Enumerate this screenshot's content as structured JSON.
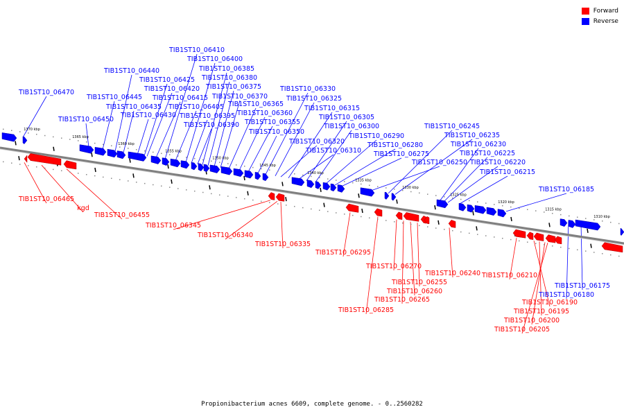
{
  "caption": "Propionibacterium acnes 6609, complete genome. - 0..2560282",
  "legend": [
    {
      "label": "Forward",
      "color": "#ff0000"
    },
    {
      "label": "Reverse",
      "color": "#0000ff"
    }
  ],
  "colors": {
    "forward": "#ff0000",
    "reverse": "#0000ff",
    "backbone": "#7f7f7f"
  },
  "scale_ticks": [
    "1370 kbp",
    "1365 kbp",
    "1360 kbp",
    "1355 kbp",
    "1350 kbp",
    "1345 kbp",
    "1340 kbp",
    "1335 kbp",
    "1330 kbp",
    "1325 kbp",
    "1320 kbp",
    "1315 kbp",
    "1310 kbp"
  ],
  "reverse_gene_labels": [
    "TIB1ST10_06470",
    "TIB1ST10_06450",
    "TIB1ST10_06445",
    "TIB1ST10_06440",
    "TIB1ST10_06435",
    "TIB1ST10_06430",
    "TIB1ST10_06425",
    "TIB1ST10_06420",
    "TIB1ST10_06415",
    "TIB1ST10_06410",
    "TIB1ST10_06405",
    "TIB1ST10_06400",
    "TIB1ST10_06395",
    "TIB1ST10_06390",
    "TIB1ST10_06385",
    "TIB1ST10_06380",
    "TIB1ST10_06375",
    "TIB1ST10_06370",
    "TIB1ST10_06365",
    "TIB1ST10_06360",
    "TIB1ST10_06355",
    "TIB1ST10_06350",
    "TIB1ST10_06330",
    "TIB1ST10_06325",
    "TIB1ST10_06320",
    "TIB1ST10_06315",
    "TIB1ST10_06310",
    "TIB1ST10_06305",
    "TIB1ST10_06300",
    "TIB1ST10_06290",
    "TIB1ST10_06280",
    "TIB1ST10_06275",
    "TIB1ST10_06250",
    "TIB1ST10_06245",
    "TIB1ST10_06235",
    "TIB1ST10_06230",
    "TIB1ST10_06225",
    "TIB1ST10_06220",
    "TIB1ST10_06215",
    "TIB1ST10_06185",
    "TIB1ST10_06180",
    "TIB1ST10_06175"
  ],
  "forward_gene_labels": [
    "TIB1ST10_06465",
    "kgd",
    "TIB1ST10_06455",
    "TIB1ST10_06345",
    "TIB1ST10_06340",
    "TIB1ST10_06335",
    "TIB1ST10_06295",
    "TIB1ST10_06285",
    "TIB1ST10_06270",
    "TIB1ST10_06265",
    "TIB1ST10_06260",
    "TIB1ST10_06255",
    "TIB1ST10_06240",
    "TIB1ST10_06210",
    "TIB1ST10_06205",
    "TIB1ST10_06200",
    "TIB1ST10_06195",
    "TIB1ST10_06190"
  ]
}
